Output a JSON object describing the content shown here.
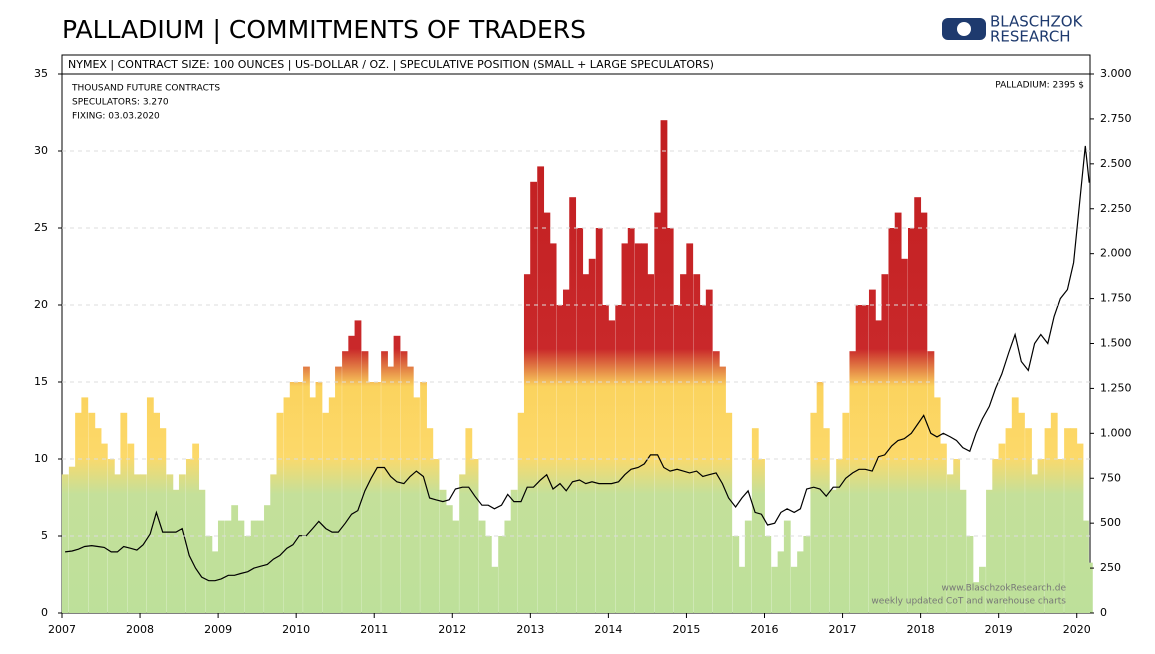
{
  "chart_data": {
    "type": "bar",
    "title": "PALLADIUM | COMMITMENTS OF TRADERS",
    "logo": [
      "BLASCHZOK",
      "RESEARCH"
    ],
    "subtitle": "NYMEX  | CONTRACT SIZE: 100 OUNCES  | US-DOLLAR / OZ.  |  SPECULATIVE POSITION (SMALL + LARGE SPECULATORS)",
    "annotations": [
      "THOUSAND  FUTURE  CONTRACTS",
      "SPECULATORS:  3.270",
      "FIXING:  03.03.2020",
      "PALLADIUM:  2395  $",
      "www.BlaschzokResearch.de",
      "weekly  updated  CoT and warehouse  charts"
    ],
    "x": [
      2007.04,
      2007.13,
      2007.21,
      2007.29,
      2007.38,
      2007.46,
      2007.54,
      2007.63,
      2007.71,
      2007.79,
      2007.88,
      2007.96,
      2008.04,
      2008.13,
      2008.21,
      2008.29,
      2008.38,
      2008.46,
      2008.54,
      2008.63,
      2008.71,
      2008.79,
      2008.88,
      2008.96,
      2009.04,
      2009.13,
      2009.21,
      2009.29,
      2009.38,
      2009.46,
      2009.54,
      2009.63,
      2009.71,
      2009.79,
      2009.88,
      2009.96,
      2010.04,
      2010.13,
      2010.21,
      2010.29,
      2010.38,
      2010.46,
      2010.54,
      2010.63,
      2010.71,
      2010.79,
      2010.88,
      2010.96,
      2011.04,
      2011.13,
      2011.21,
      2011.29,
      2011.38,
      2011.46,
      2011.54,
      2011.63,
      2011.71,
      2011.79,
      2011.88,
      2011.96,
      2012.04,
      2012.13,
      2012.21,
      2012.29,
      2012.38,
      2012.46,
      2012.54,
      2012.63,
      2012.71,
      2012.79,
      2012.88,
      2012.96,
      2013.04,
      2013.13,
      2013.21,
      2013.29,
      2013.38,
      2013.46,
      2013.54,
      2013.63,
      2013.71,
      2013.79,
      2013.88,
      2013.96,
      2014.04,
      2014.13,
      2014.21,
      2014.29,
      2014.38,
      2014.46,
      2014.54,
      2014.63,
      2014.71,
      2014.79,
      2014.88,
      2014.96,
      2015.04,
      2015.13,
      2015.21,
      2015.29,
      2015.38,
      2015.46,
      2015.54,
      2015.63,
      2015.71,
      2015.79,
      2015.88,
      2015.96,
      2016.04,
      2016.13,
      2016.21,
      2016.29,
      2016.38,
      2016.46,
      2016.54,
      2016.63,
      2016.71,
      2016.79,
      2016.88,
      2016.96,
      2017.04,
      2017.13,
      2017.21,
      2017.29,
      2017.38,
      2017.46,
      2017.54,
      2017.63,
      2017.71,
      2017.79,
      2017.88,
      2017.96,
      2018.04,
      2018.13,
      2018.21,
      2018.29,
      2018.38,
      2018.46,
      2018.54,
      2018.63,
      2018.71,
      2018.79,
      2018.88,
      2018.96,
      2019.04,
      2019.13,
      2019.21,
      2019.29,
      2019.38,
      2019.46,
      2019.54,
      2019.63,
      2019.71,
      2019.79,
      2019.88,
      2019.96,
      2020.04,
      2020.11,
      2020.16
    ],
    "series": [
      {
        "type": "bar",
        "axis": "y",
        "values": [
          9,
          9.5,
          13,
          14,
          13,
          12,
          11,
          10,
          9,
          13,
          11,
          9,
          9,
          14,
          13,
          12,
          9,
          8,
          9,
          10,
          11,
          8,
          5,
          4,
          6,
          6,
          7,
          6,
          5,
          6,
          6,
          7,
          9,
          13,
          14,
          15,
          15,
          16,
          14,
          15,
          13,
          14,
          16,
          17,
          18,
          19,
          17,
          15,
          15,
          17,
          16,
          18,
          17,
          16,
          14,
          15,
          12,
          10,
          8,
          7,
          6,
          9,
          12,
          10,
          6,
          5,
          3,
          5,
          6,
          8,
          13,
          22,
          28,
          29,
          26,
          24,
          20,
          21,
          27,
          25,
          22,
          23,
          25,
          20,
          19,
          20,
          24,
          25,
          24,
          24,
          22,
          26,
          32,
          25,
          20,
          22,
          24,
          22,
          20,
          21,
          17,
          16,
          13,
          5,
          3,
          6,
          12,
          10,
          5,
          3,
          4,
          6,
          3,
          4,
          5,
          13,
          15,
          12,
          8,
          10,
          13,
          17,
          20,
          20,
          21,
          19,
          22,
          25,
          26,
          23,
          25,
          27,
          26,
          17,
          14,
          11,
          9,
          10,
          8,
          5,
          2,
          3,
          8,
          10,
          11,
          12,
          14,
          13,
          12,
          9,
          10,
          12,
          13,
          10,
          12,
          12,
          11,
          6,
          3.27
        ]
      },
      {
        "type": "line",
        "axis": "y2",
        "color": "#000000",
        "values": [
          340,
          345,
          355,
          370,
          375,
          370,
          365,
          340,
          340,
          370,
          360,
          350,
          380,
          440,
          560,
          450,
          450,
          450,
          470,
          320,
          250,
          200,
          180,
          180,
          190,
          210,
          210,
          220,
          230,
          250,
          260,
          270,
          300,
          320,
          360,
          380,
          430,
          430,
          470,
          510,
          470,
          450,
          450,
          500,
          550,
          570,
          680,
          750,
          810,
          810,
          760,
          730,
          720,
          760,
          790,
          760,
          640,
          630,
          620,
          630,
          690,
          700,
          700,
          650,
          600,
          600,
          580,
          600,
          660,
          620,
          620,
          700,
          700,
          740,
          770,
          690,
          720,
          680,
          730,
          740,
          720,
          730,
          720,
          720,
          720,
          730,
          770,
          800,
          810,
          830,
          880,
          880,
          810,
          790,
          800,
          790,
          780,
          790,
          760,
          770,
          780,
          720,
          640,
          590,
          640,
          680,
          560,
          550,
          490,
          500,
          560,
          580,
          560,
          580,
          690,
          700,
          690,
          650,
          700,
          700,
          750,
          780,
          800,
          800,
          790,
          870,
          880,
          930,
          960,
          970,
          1000,
          1050,
          1100,
          1000,
          980,
          1000,
          980,
          960,
          920,
          900,
          1000,
          1080,
          1150,
          1250,
          1330,
          1450,
          1550,
          1400,
          1350,
          1500,
          1550,
          1500,
          1650,
          1750,
          1800,
          1950,
          2300,
          2600,
          2395
        ]
      }
    ],
    "xlim": [
      2007,
      2020.17
    ],
    "xticks": [
      2007,
      2008,
      2009,
      2010,
      2011,
      2012,
      2013,
      2014,
      2015,
      2016,
      2017,
      2018,
      2019,
      2020
    ],
    "ylim": [
      0,
      35
    ],
    "yticks": [
      0,
      5,
      10,
      15,
      20,
      25,
      30,
      35
    ],
    "y2lim": [
      0,
      3000
    ],
    "y2ticks": [
      0,
      250,
      500,
      750,
      {
        "value": 1000,
        "label": "1.000"
      },
      {
        "value": 1250,
        "label": "1.250"
      },
      {
        "value": 1500,
        "label": "1.500"
      },
      {
        "value": 1750,
        "label": "1.750"
      },
      {
        "value": 2000,
        "label": "2.000"
      },
      {
        "value": 2250,
        "label": "2.250"
      },
      {
        "value": 2500,
        "label": "2.500"
      },
      {
        "value": 2750,
        "label": "2.750"
      },
      {
        "value": 3000,
        "label": "3.000"
      }
    ],
    "grid": true
  }
}
